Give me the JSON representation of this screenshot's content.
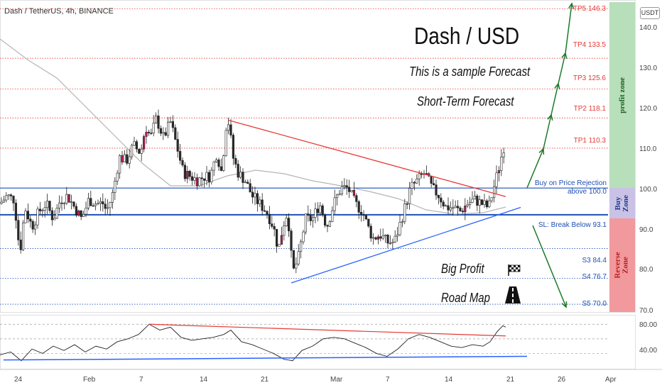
{
  "header": {
    "symbol_label": "Dash / TetherUS, 4h, BINANCE",
    "currency_badge": "USDT"
  },
  "annotations": {
    "main_title": "Dash / USD",
    "subtitle_1": "This is a sample Forecast",
    "subtitle_2": "Short-Term Forecast",
    "big_profit": "Big Profit",
    "road_map": "Road Map"
  },
  "levels": {
    "tp5": "TP5 146.3",
    "tp4": "TP4 133.5",
    "tp3": "TP3 125.6",
    "tp2": "TP2 118.1",
    "tp1": "TP1 110.3",
    "buy_line1": "Buy on Price Rejection",
    "buy_line2": "above 100.0",
    "sl": "SL: Break Below 93.1",
    "s3": "S3 84.4",
    "s4": "S4 76.7",
    "s5": "S5 70.0"
  },
  "zones": {
    "profit": "profit zone",
    "buy_1": "Buy",
    "buy_2": "Zone",
    "reverse_1": "Reverse",
    "reverse_2": "Zone"
  },
  "price_axis": [
    "140.0",
    "130.0",
    "120.0",
    "110.0",
    "100.0",
    "90.0",
    "80.0",
    "70.0"
  ],
  "rsi_axis": [
    "80.00",
    "40.00"
  ],
  "time_axis": [
    "24",
    "Feb",
    "7",
    "14",
    "21",
    "Mar",
    "7",
    "14",
    "21",
    "26",
    "Apr"
  ],
  "colors": {
    "target_line": "#e53935",
    "support_line": "#1e4fb5",
    "profit_zone": "#b7dfba",
    "buy_zone": "#c9c2e6",
    "reverse_zone": "#f1999d",
    "forecast_arrow": "#1b7a2b",
    "candle_up": "#ffffff",
    "candle_down": "#2a2a2a",
    "accent_candle": "#c2185b"
  },
  "icons": [
    "checkered-flag-icon",
    "road-icon"
  ],
  "chart_data": {
    "type": "candlestick",
    "title": "Dash / TetherUS, 4h, BINANCE",
    "ylim": [
      68,
      148
    ],
    "targets": [
      146.3,
      133.5,
      125.6,
      118.1,
      110.3
    ],
    "buy_level": 100.0,
    "stop_loss": 93.1,
    "supports": [
      84.4,
      76.7,
      70.0
    ],
    "close_path": [
      [
        0,
        96
      ],
      [
        10,
        98
      ],
      [
        20,
        97
      ],
      [
        28,
        83
      ],
      [
        35,
        95
      ],
      [
        45,
        90
      ],
      [
        55,
        94
      ],
      [
        65,
        96
      ],
      [
        75,
        92
      ],
      [
        85,
        97
      ],
      [
        95,
        98
      ],
      [
        105,
        95
      ],
      [
        115,
        92
      ],
      [
        125,
        97
      ],
      [
        135,
        96
      ],
      [
        145,
        96
      ],
      [
        150,
        94
      ],
      [
        158,
        98
      ],
      [
        168,
        108
      ],
      [
        178,
        107
      ],
      [
        188,
        111
      ],
      [
        198,
        109
      ],
      [
        205,
        116
      ],
      [
        212,
        113
      ],
      [
        220,
        118
      ],
      [
        230,
        113
      ],
      [
        240,
        117
      ],
      [
        250,
        110
      ],
      [
        258,
        104
      ],
      [
        268,
        103
      ],
      [
        278,
        102
      ],
      [
        288,
        103
      ],
      [
        296,
        103
      ],
      [
        305,
        109
      ],
      [
        312,
        104
      ],
      [
        318,
        116
      ],
      [
        322,
        117
      ],
      [
        328,
        108
      ],
      [
        335,
        104
      ],
      [
        345,
        102
      ],
      [
        355,
        98
      ],
      [
        365,
        96
      ],
      [
        375,
        94
      ],
      [
        385,
        90
      ],
      [
        392,
        84
      ],
      [
        398,
        90
      ],
      [
        405,
        94
      ],
      [
        412,
        78
      ],
      [
        420,
        82
      ],
      [
        430,
        92
      ],
      [
        440,
        92
      ],
      [
        450,
        96
      ],
      [
        460,
        90
      ],
      [
        470,
        96
      ],
      [
        480,
        100
      ],
      [
        490,
        100
      ],
      [
        500,
        96
      ],
      [
        510,
        94
      ],
      [
        518,
        90
      ],
      [
        525,
        87
      ],
      [
        535,
        88
      ],
      [
        545,
        86
      ],
      [
        555,
        86
      ],
      [
        562,
        90
      ],
      [
        570,
        95
      ],
      [
        578,
        100
      ],
      [
        588,
        102
      ],
      [
        598,
        104
      ],
      [
        608,
        100
      ],
      [
        618,
        98
      ],
      [
        628,
        95
      ],
      [
        638,
        95
      ],
      [
        648,
        94
      ],
      [
        658,
        96
      ],
      [
        668,
        97
      ],
      [
        678,
        96
      ],
      [
        688,
        95
      ],
      [
        695,
        100
      ],
      [
        702,
        105
      ],
      [
        708,
        110
      ],
      [
        712,
        112
      ]
    ],
    "rsi_ylim": [
      20,
      90
    ],
    "rsi_path": [
      [
        0,
        38
      ],
      [
        15,
        42
      ],
      [
        30,
        30
      ],
      [
        45,
        46
      ],
      [
        60,
        40
      ],
      [
        75,
        50
      ],
      [
        90,
        44
      ],
      [
        105,
        52
      ],
      [
        120,
        42
      ],
      [
        135,
        50
      ],
      [
        150,
        46
      ],
      [
        165,
        56
      ],
      [
        180,
        60
      ],
      [
        195,
        66
      ],
      [
        210,
        80
      ],
      [
        225,
        72
      ],
      [
        240,
        76
      ],
      [
        255,
        62
      ],
      [
        270,
        58
      ],
      [
        285,
        60
      ],
      [
        300,
        62
      ],
      [
        315,
        66
      ],
      [
        325,
        72
      ],
      [
        340,
        56
      ],
      [
        355,
        52
      ],
      [
        370,
        46
      ],
      [
        385,
        40
      ],
      [
        400,
        32
      ],
      [
        412,
        30
      ],
      [
        425,
        44
      ],
      [
        440,
        50
      ],
      [
        455,
        60
      ],
      [
        470,
        62
      ],
      [
        485,
        60
      ],
      [
        500,
        54
      ],
      [
        515,
        48
      ],
      [
        530,
        40
      ],
      [
        545,
        36
      ],
      [
        560,
        46
      ],
      [
        575,
        60
      ],
      [
        590,
        66
      ],
      [
        605,
        62
      ],
      [
        620,
        56
      ],
      [
        635,
        50
      ],
      [
        650,
        48
      ],
      [
        665,
        52
      ],
      [
        680,
        50
      ],
      [
        690,
        56
      ],
      [
        700,
        70
      ],
      [
        708,
        78
      ],
      [
        712,
        76
      ]
    ]
  }
}
